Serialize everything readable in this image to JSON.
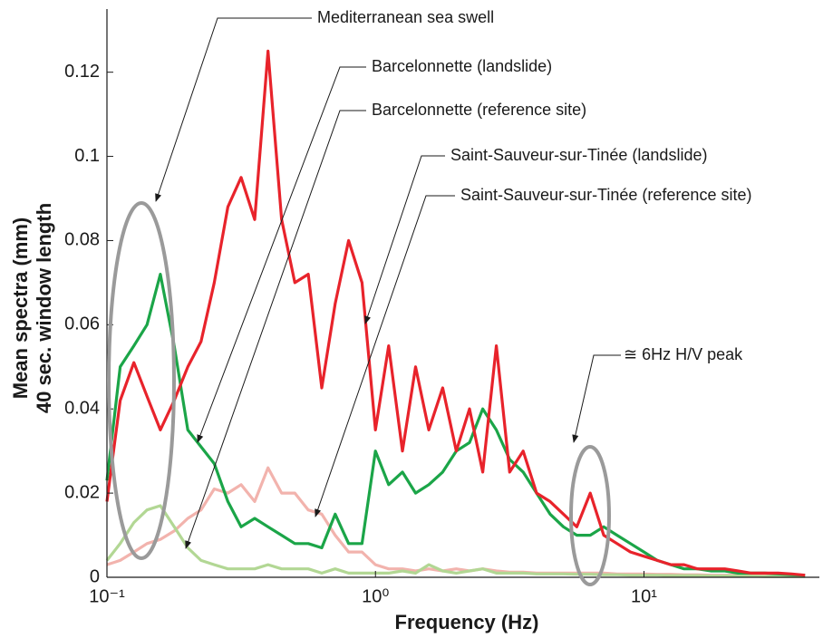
{
  "chart_data": {
    "type": "line",
    "x_label": "Frequency (Hz)",
    "y_label": [
      "Mean spectra (mm)",
      "40 sec. window length"
    ],
    "x_scale": "log",
    "xlim": [
      0.1,
      45
    ],
    "ylim": [
      0,
      0.135
    ],
    "xticks": [
      {
        "value": 0.1,
        "label": "10⁻¹"
      },
      {
        "value": 1,
        "label": "10⁰"
      },
      {
        "value": 10,
        "label": "10¹"
      }
    ],
    "yticks": [
      0,
      0.02,
      0.04,
      0.06,
      0.08,
      0.1,
      0.12
    ],
    "x": [
      0.1,
      0.112,
      0.126,
      0.141,
      0.158,
      0.178,
      0.2,
      0.224,
      0.251,
      0.282,
      0.316,
      0.355,
      0.398,
      0.447,
      0.501,
      0.562,
      0.631,
      0.708,
      0.794,
      0.891,
      1,
      1.12,
      1.26,
      1.41,
      1.58,
      1.78,
      2,
      2.24,
      2.51,
      2.82,
      3.16,
      3.55,
      3.98,
      4.47,
      5.01,
      5.62,
      6.31,
      7.08,
      7.94,
      8.91,
      10,
      11.2,
      12.6,
      14.1,
      15.8,
      17.8,
      20,
      22.4,
      25.1,
      28.2,
      31.6,
      35.5,
      39.8
    ],
    "series": [
      {
        "name": "Saint-Sauveur-sur-Tinée (reference site)",
        "color": "#f2b3ad",
        "values": [
          0.003,
          0.004,
          0.006,
          0.008,
          0.009,
          0.011,
          0.014,
          0.016,
          0.021,
          0.02,
          0.022,
          0.018,
          0.026,
          0.02,
          0.02,
          0.016,
          0.015,
          0.01,
          0.006,
          0.006,
          0.003,
          0.002,
          0.002,
          0.0015,
          0.002,
          0.0015,
          0.002,
          0.0015,
          0.002,
          0.0015,
          0.0012,
          0.0012,
          0.001,
          0.001,
          0.001,
          0.001,
          0.001,
          0.001,
          0.0008,
          0.0008,
          0.0008,
          0.0007,
          0.0007,
          0.0006,
          0.0006,
          0.0005,
          0.0005,
          0.0005,
          0.0004,
          0.0004,
          0.0004,
          0.0003,
          0.0003
        ]
      },
      {
        "name": "Barcelonnette (reference site)",
        "color": "#b2d794",
        "values": [
          0.004,
          0.008,
          0.013,
          0.016,
          0.017,
          0.012,
          0.007,
          0.004,
          0.003,
          0.002,
          0.002,
          0.002,
          0.003,
          0.002,
          0.002,
          0.002,
          0.001,
          0.002,
          0.001,
          0.001,
          0.001,
          0.001,
          0.0015,
          0.001,
          0.003,
          0.0015,
          0.001,
          0.0015,
          0.002,
          0.001,
          0.001,
          0.001,
          0.0008,
          0.0008,
          0.0008,
          0.0007,
          0.0007,
          0.0006,
          0.0006,
          0.0005,
          0.0005,
          0.0005,
          0.0004,
          0.0004,
          0.0004,
          0.0003,
          0.0003,
          0.0003,
          0.0003,
          0.0002,
          0.0002,
          0.0002,
          0.0002
        ]
      },
      {
        "name": "Barcelonnette (landslide)",
        "color": "#1ba548",
        "values": [
          0.023,
          0.05,
          0.055,
          0.06,
          0.072,
          0.055,
          0.035,
          0.031,
          0.027,
          0.018,
          0.012,
          0.014,
          0.012,
          0.01,
          0.008,
          0.008,
          0.007,
          0.015,
          0.008,
          0.008,
          0.03,
          0.022,
          0.025,
          0.02,
          0.022,
          0.025,
          0.03,
          0.032,
          0.04,
          0.035,
          0.028,
          0.025,
          0.02,
          0.015,
          0.012,
          0.01,
          0.01,
          0.012,
          0.01,
          0.008,
          0.006,
          0.004,
          0.003,
          0.002,
          0.002,
          0.0015,
          0.0015,
          0.001,
          0.001,
          0.001,
          0.0008,
          0.0006,
          0.0005
        ]
      },
      {
        "name": "Saint-Sauveur-sur-Tinée (landslide)",
        "color": "#e8232b",
        "values": [
          0.018,
          0.042,
          0.051,
          0.043,
          0.035,
          0.042,
          0.05,
          0.056,
          0.07,
          0.088,
          0.095,
          0.085,
          0.125,
          0.085,
          0.07,
          0.072,
          0.045,
          0.065,
          0.08,
          0.07,
          0.035,
          0.055,
          0.03,
          0.05,
          0.035,
          0.045,
          0.03,
          0.04,
          0.025,
          0.055,
          0.025,
          0.03,
          0.02,
          0.018,
          0.015,
          0.012,
          0.02,
          0.01,
          0.008,
          0.006,
          0.005,
          0.004,
          0.003,
          0.003,
          0.002,
          0.002,
          0.002,
          0.0015,
          0.001,
          0.001,
          0.001,
          0.0008,
          0.0005
        ]
      }
    ],
    "annotations": [
      "Mediterranean sea swell",
      "Barcelonnette (landslide)",
      "Barcelonnette (reference site)",
      "Saint-Sauveur-sur-Tinée (landslide)",
      "Saint-Sauveur-sur-Tinée (reference site)",
      "≅ 6Hz H/V peak"
    ]
  }
}
